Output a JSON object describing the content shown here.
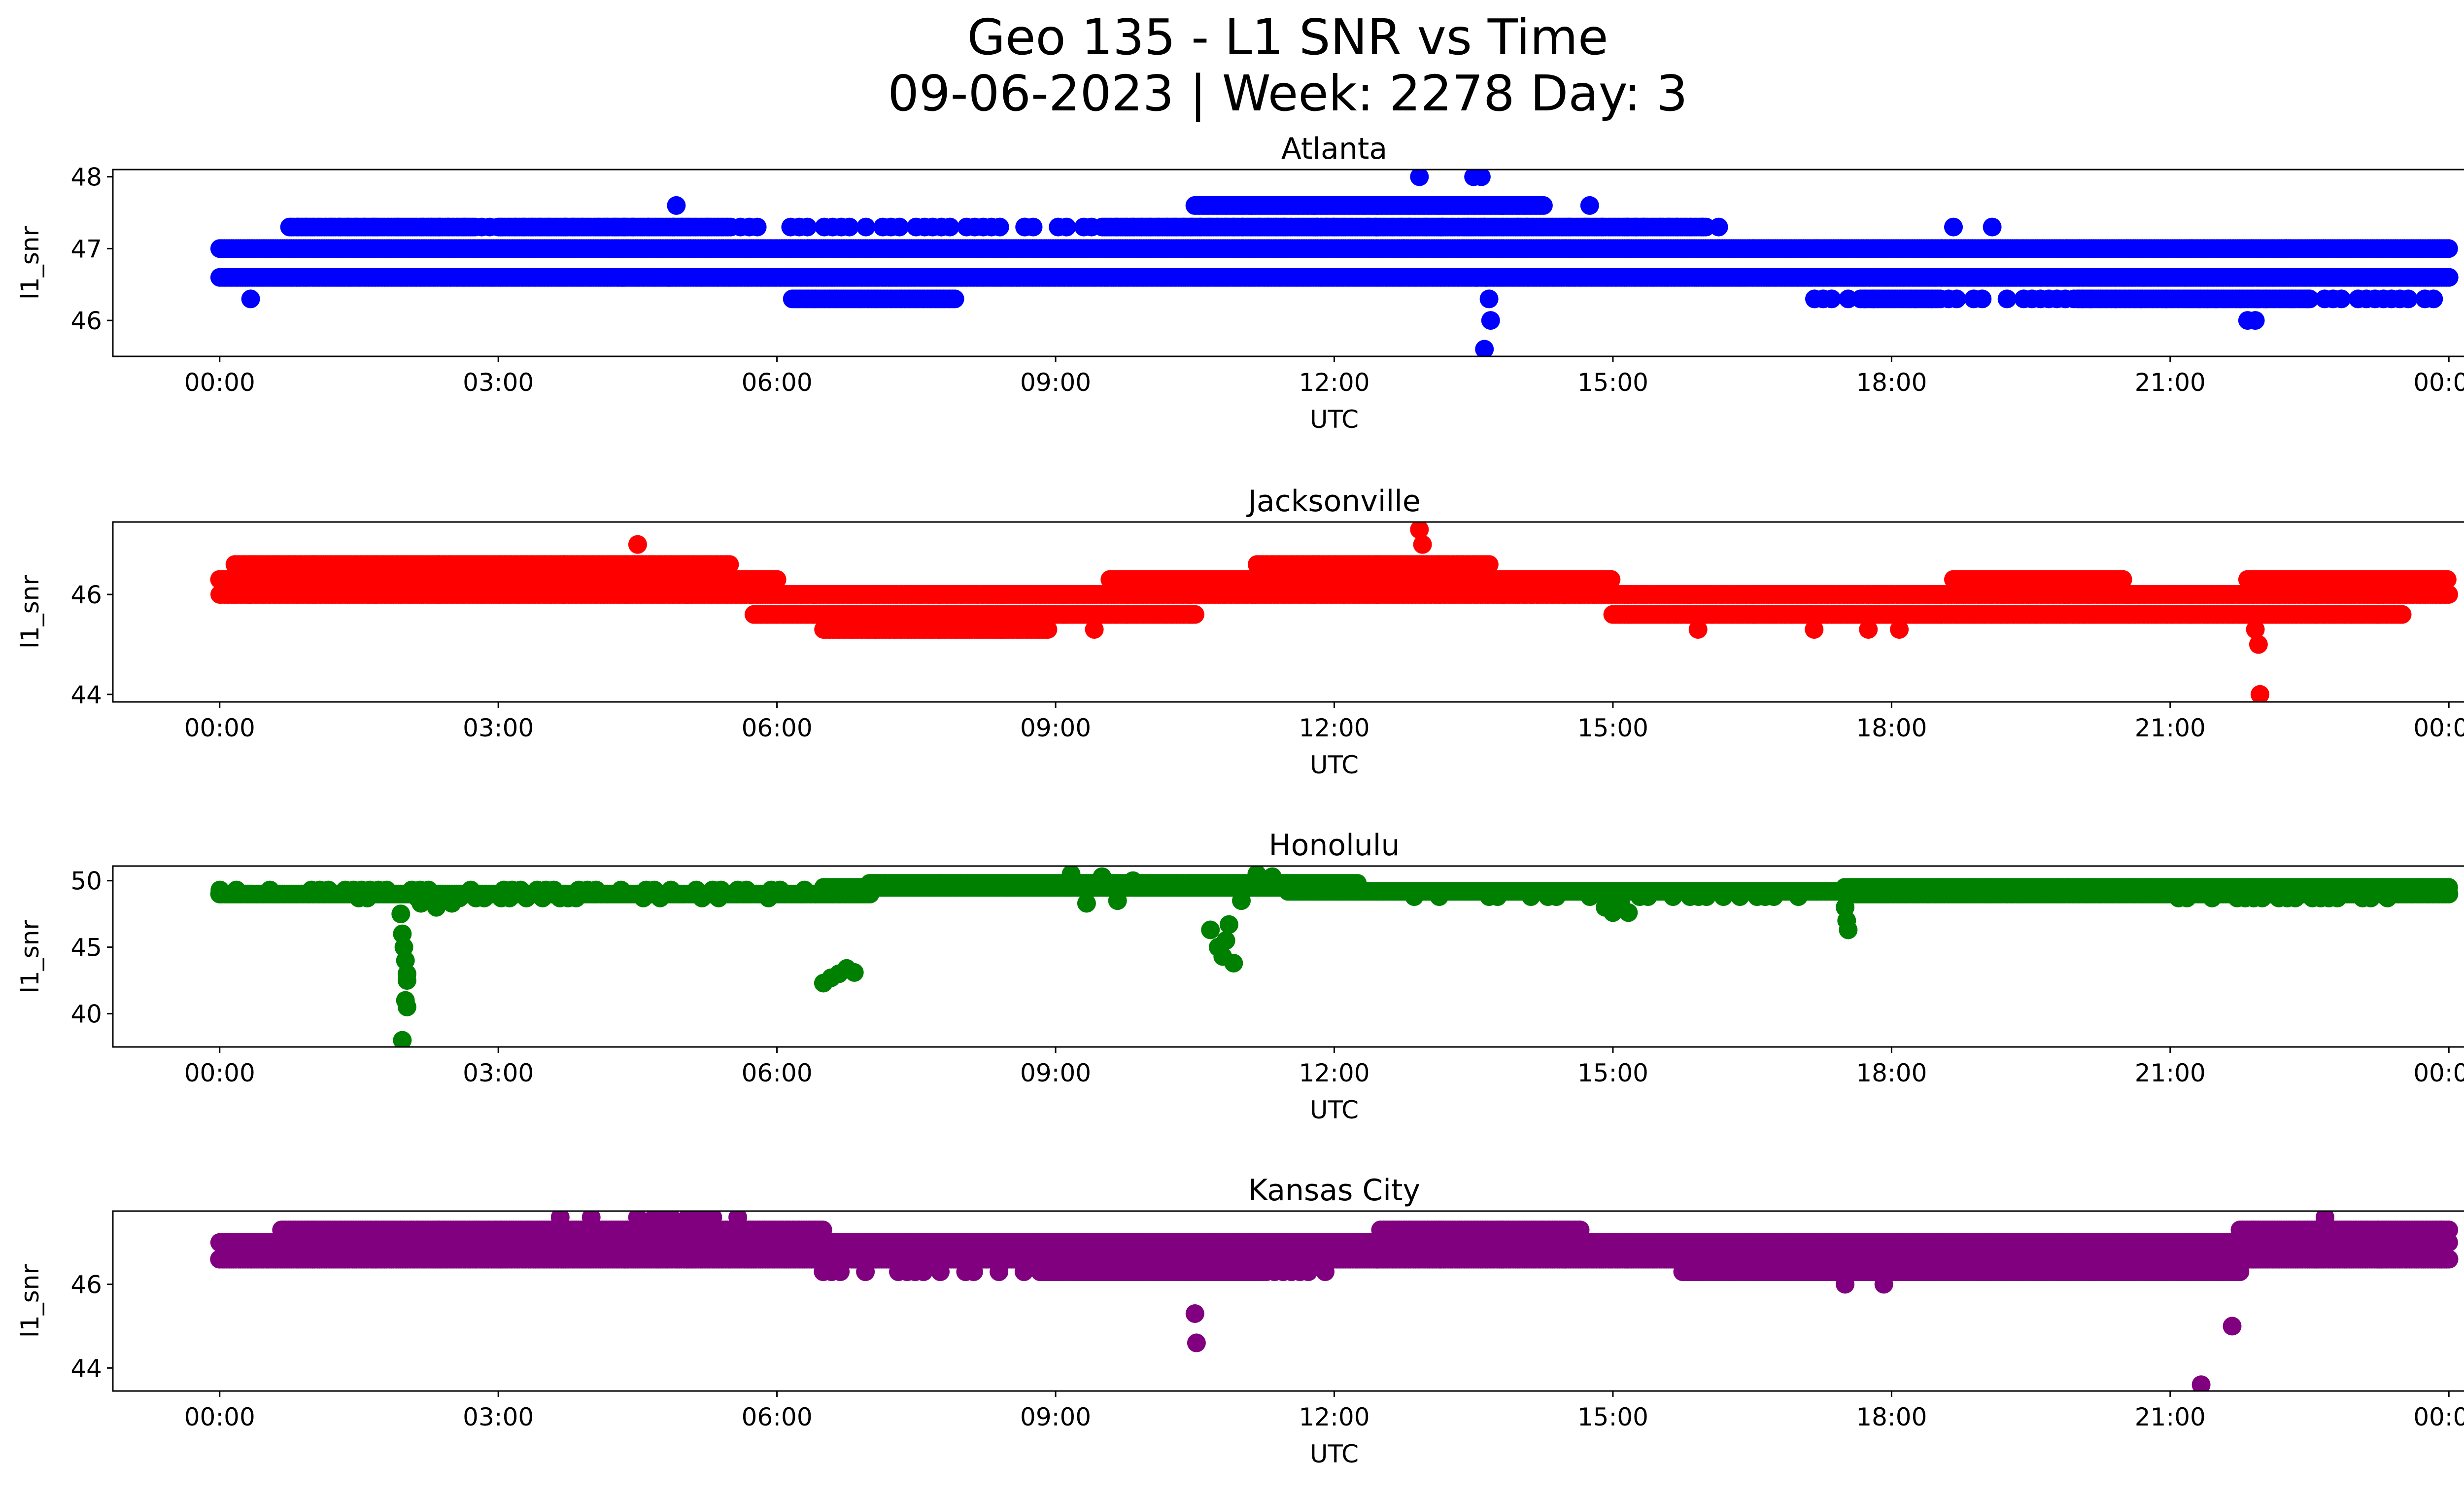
{
  "figure": {
    "title_line1": "Geo 135 - L1 SNR vs Time",
    "title_line2": "09-06-2023 | Week: 2278 Day: 3"
  },
  "chart_data": [
    {
      "type": "scatter",
      "title": "Atlanta",
      "xlabel": "UTC",
      "ylabel": "l1_snr",
      "color": "#0000ff",
      "x_ticks": [
        "00:00",
        "03:00",
        "06:00",
        "09:00",
        "12:00",
        "15:00",
        "18:00",
        "21:00",
        "00:00"
      ],
      "x_domain_hours": [
        -1.15,
        25.15
      ],
      "ylim": [
        45.5,
        48.1
      ],
      "y_ticks": [
        46,
        47,
        48
      ],
      "series": [
        {
          "level": 47.0,
          "start": "00:00",
          "end": "24:00"
        },
        {
          "level": 46.6,
          "start": "00:00",
          "end": "24:00"
        },
        {
          "level": 47.3,
          "start": "00:45",
          "end": "16:10",
          "sparse": true
        },
        {
          "level": 47.3,
          "start": "00:45",
          "end": "02:45"
        },
        {
          "level": 47.3,
          "start": "03:00",
          "end": "05:30"
        },
        {
          "level": 47.6,
          "start": "10:30",
          "end": "14:15"
        },
        {
          "level": 47.3,
          "start": "09:30",
          "end": "16:00"
        },
        {
          "level": 46.3,
          "start": "06:10",
          "end": "07:55"
        },
        {
          "level": 46.3,
          "start": "17:05",
          "end": "23:50",
          "sparse": true
        },
        {
          "level": 46.3,
          "start": "17:40",
          "end": "18:30"
        },
        {
          "level": 46.3,
          "start": "20:00",
          "end": "22:30"
        }
      ],
      "points": [
        [
          "00:20",
          46.3
        ],
        [
          "04:20",
          46.6
        ],
        [
          "04:50",
          46.6
        ],
        [
          "04:55",
          47.6
        ],
        [
          "06:20",
          47.0
        ],
        [
          "08:40",
          47.3
        ],
        [
          "12:45",
          47.0
        ],
        [
          "12:55",
          48.0
        ],
        [
          "13:30",
          48.0
        ],
        [
          "13:35",
          48.0
        ],
        [
          "13:32",
          46.6
        ],
        [
          "13:38",
          46.6
        ],
        [
          "13:40",
          46.3
        ],
        [
          "13:41",
          46.0
        ],
        [
          "13:37",
          45.6
        ],
        [
          "14:45",
          47.6
        ],
        [
          "18:40",
          47.3
        ],
        [
          "19:05",
          47.3
        ],
        [
          "21:50",
          46.0
        ],
        [
          "21:55",
          46.0
        ],
        [
          "22:15",
          47.0
        ]
      ]
    },
    {
      "type": "scatter",
      "title": "Jacksonville",
      "xlabel": "UTC",
      "ylabel": "l1_snr",
      "color": "#ff0000",
      "x_ticks": [
        "00:00",
        "03:00",
        "06:00",
        "09:00",
        "12:00",
        "15:00",
        "18:00",
        "21:00",
        "00:00"
      ],
      "x_domain_hours": [
        -1.15,
        25.15
      ],
      "ylim": [
        43.85,
        47.45
      ],
      "y_ticks": [
        44,
        46
      ],
      "series": [
        {
          "level": 46.0,
          "start": "00:00",
          "end": "24:00"
        },
        {
          "level": 46.3,
          "start": "00:00",
          "end": "06:00"
        },
        {
          "level": 46.6,
          "start": "00:10",
          "end": "05:30"
        },
        {
          "level": 45.6,
          "start": "05:45",
          "end": "10:30"
        },
        {
          "level": 45.3,
          "start": "06:30",
          "end": "08:55"
        },
        {
          "level": 46.3,
          "start": "09:35",
          "end": "15:00"
        },
        {
          "level": 46.6,
          "start": "11:10",
          "end": "13:40"
        },
        {
          "level": 45.6,
          "start": "15:00",
          "end": "23:30"
        },
        {
          "level": 46.3,
          "start": "18:40",
          "end": "20:30"
        },
        {
          "level": 46.3,
          "start": "21:50",
          "end": "24:00"
        }
      ],
      "points": [
        [
          "04:30",
          47.0
        ],
        [
          "08:55",
          45.3
        ],
        [
          "09:25",
          45.3
        ],
        [
          "12:55",
          47.3
        ],
        [
          "12:57",
          47.0
        ],
        [
          "15:55",
          45.3
        ],
        [
          "17:10",
          45.3
        ],
        [
          "17:45",
          45.3
        ],
        [
          "18:05",
          45.3
        ],
        [
          "21:55",
          45.3
        ],
        [
          "21:57",
          45.0
        ],
        [
          "21:58",
          44.0
        ]
      ]
    },
    {
      "type": "scatter",
      "title": "Honolulu",
      "xlabel": "UTC",
      "ylabel": "l1_snr",
      "color": "#008000",
      "x_ticks": [
        "00:00",
        "03:00",
        "06:00",
        "09:00",
        "12:00",
        "15:00",
        "18:00",
        "21:00",
        "00:00"
      ],
      "x_domain_hours": [
        -1.15,
        25.15
      ],
      "ylim": [
        37.5,
        51.1
      ],
      "y_ticks": [
        40,
        45,
        50
      ],
      "series": [
        {
          "level": 49.0,
          "start": "00:00",
          "end": "07:00"
        },
        {
          "level": 48.7,
          "start": "01:30",
          "end": "06:00",
          "sparse": true
        },
        {
          "level": 49.3,
          "start": "00:00",
          "end": "07:00",
          "sparse": true
        },
        {
          "level": 49.5,
          "start": "06:30",
          "end": "12:00"
        },
        {
          "level": 49.8,
          "start": "07:00",
          "end": "12:15"
        },
        {
          "level": 49.2,
          "start": "11:30",
          "end": "17:30"
        },
        {
          "level": 48.8,
          "start": "12:30",
          "end": "17:00",
          "sparse": true
        },
        {
          "level": 49.5,
          "start": "17:30",
          "end": "24:00"
        },
        {
          "level": 49.0,
          "start": "17:30",
          "end": "24:00"
        },
        {
          "level": 48.7,
          "start": "21:00",
          "end": "23:30",
          "sparse": true
        }
      ],
      "points": [
        [
          "01:57",
          47.5
        ],
        [
          "01:58",
          46.0
        ],
        [
          "01:59",
          45.0
        ],
        [
          "02:00",
          44.0
        ],
        [
          "02:01",
          43.0
        ],
        [
          "02:01",
          42.5
        ],
        [
          "02:00",
          41.0
        ],
        [
          "02:01",
          40.5
        ],
        [
          "01:58",
          38.0
        ],
        [
          "02:10",
          48.3
        ],
        [
          "02:20",
          48.0
        ],
        [
          "02:30",
          48.3
        ],
        [
          "06:30",
          42.3
        ],
        [
          "06:35",
          42.7
        ],
        [
          "06:40",
          43.0
        ],
        [
          "06:45",
          43.4
        ],
        [
          "06:50",
          43.1
        ],
        [
          "09:10",
          50.5
        ],
        [
          "09:20",
          48.3
        ],
        [
          "09:30",
          50.3
        ],
        [
          "09:40",
          48.5
        ],
        [
          "09:50",
          50.0
        ],
        [
          "10:40",
          46.3
        ],
        [
          "10:45",
          45.0
        ],
        [
          "10:48",
          44.3
        ],
        [
          "10:50",
          45.5
        ],
        [
          "10:55",
          43.8
        ],
        [
          "10:52",
          46.7
        ],
        [
          "11:00",
          48.5
        ],
        [
          "11:10",
          50.5
        ],
        [
          "11:20",
          50.3
        ],
        [
          "14:55",
          48.0
        ],
        [
          "15:00",
          47.6
        ],
        [
          "15:05",
          48.3
        ],
        [
          "15:10",
          47.6
        ],
        [
          "17:30",
          48.0
        ],
        [
          "17:31",
          47.0
        ],
        [
          "17:32",
          46.3
        ]
      ]
    },
    {
      "type": "scatter",
      "title": "Kansas City",
      "xlabel": "UTC",
      "ylabel": "l1_snr",
      "color": "#800080",
      "x_ticks": [
        "00:00",
        "03:00",
        "06:00",
        "09:00",
        "12:00",
        "15:00",
        "18:00",
        "21:00",
        "00:00"
      ],
      "x_domain_hours": [
        -1.15,
        25.15
      ],
      "ylim": [
        43.45,
        47.75
      ],
      "y_ticks": [
        44,
        46
      ],
      "series": [
        {
          "level": 47.0,
          "start": "00:00",
          "end": "24:00"
        },
        {
          "level": 46.6,
          "start": "00:00",
          "end": "24:00"
        },
        {
          "level": 47.3,
          "start": "00:40",
          "end": "06:30"
        },
        {
          "level": 47.6,
          "start": "04:30",
          "end": "05:45",
          "sparse": true
        },
        {
          "level": 46.3,
          "start": "06:30",
          "end": "12:00",
          "sparse": true
        },
        {
          "level": 46.3,
          "start": "08:50",
          "end": "11:15"
        },
        {
          "level": 47.3,
          "start": "12:30",
          "end": "14:40"
        },
        {
          "level": 46.3,
          "start": "15:45",
          "end": "21:45"
        },
        {
          "level": 46.3,
          "start": "16:30",
          "end": "20:00",
          "sparse": true
        },
        {
          "level": 47.3,
          "start": "21:45",
          "end": "24:00"
        }
      ],
      "points": [
        [
          "03:40",
          47.6
        ],
        [
          "04:00",
          47.6
        ],
        [
          "10:30",
          45.3
        ],
        [
          "10:31",
          44.6
        ],
        [
          "17:30",
          46.0
        ],
        [
          "17:55",
          46.0
        ],
        [
          "21:20",
          43.6
        ],
        [
          "21:40",
          45.0
        ],
        [
          "22:40",
          47.6
        ]
      ]
    }
  ]
}
